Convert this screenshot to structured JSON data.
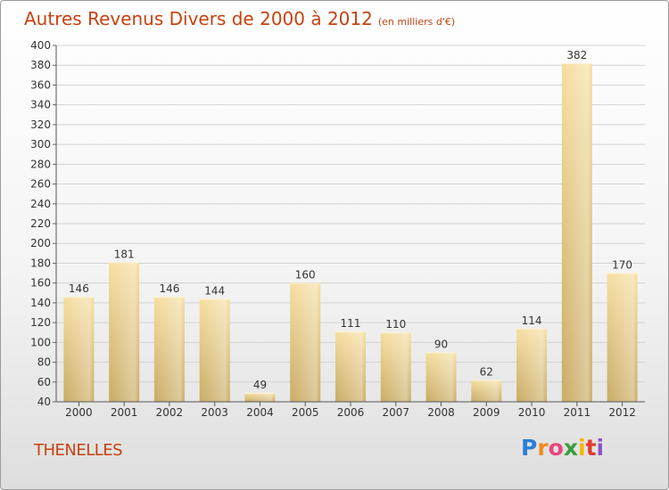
{
  "title": "Autres Revenus Divers de 2000 à 2012",
  "subtitle": "(en milliers d'€)",
  "place": "THENELLES",
  "logo": {
    "letters": [
      "P",
      "r",
      "o",
      "x",
      "i",
      "t",
      "i"
    ],
    "colors": [
      "#2a7fd4",
      "#f08a1c",
      "#e8457a",
      "#3b9d3b",
      "#f2b705",
      "#e03b2e",
      "#8a55c8"
    ]
  },
  "colors": {
    "title": "#c8410f",
    "bar_top": "#f6dea0",
    "bar_bottom": "#c8ab63"
  },
  "chart_data": {
    "type": "bar",
    "categories": [
      "2000",
      "2001",
      "2002",
      "2003",
      "2004",
      "2005",
      "2006",
      "2007",
      "2008",
      "2009",
      "2010",
      "2011",
      "2012"
    ],
    "values": [
      146,
      181,
      146,
      144,
      49,
      160,
      111,
      110,
      90,
      62,
      114,
      382,
      170
    ],
    "value_labels": [
      "146",
      "181",
      "146",
      "144",
      "49",
      "160",
      "111",
      "110",
      "90",
      "62",
      "114",
      "382",
      "170"
    ],
    "ylim": [
      40,
      400
    ],
    "yticks": [
      "40",
      "60",
      "80",
      "100",
      "120",
      "140",
      "160",
      "180",
      "200",
      "220",
      "240",
      "260",
      "280",
      "300",
      "320",
      "340",
      "360",
      "380",
      "400"
    ],
    "grid": true
  }
}
